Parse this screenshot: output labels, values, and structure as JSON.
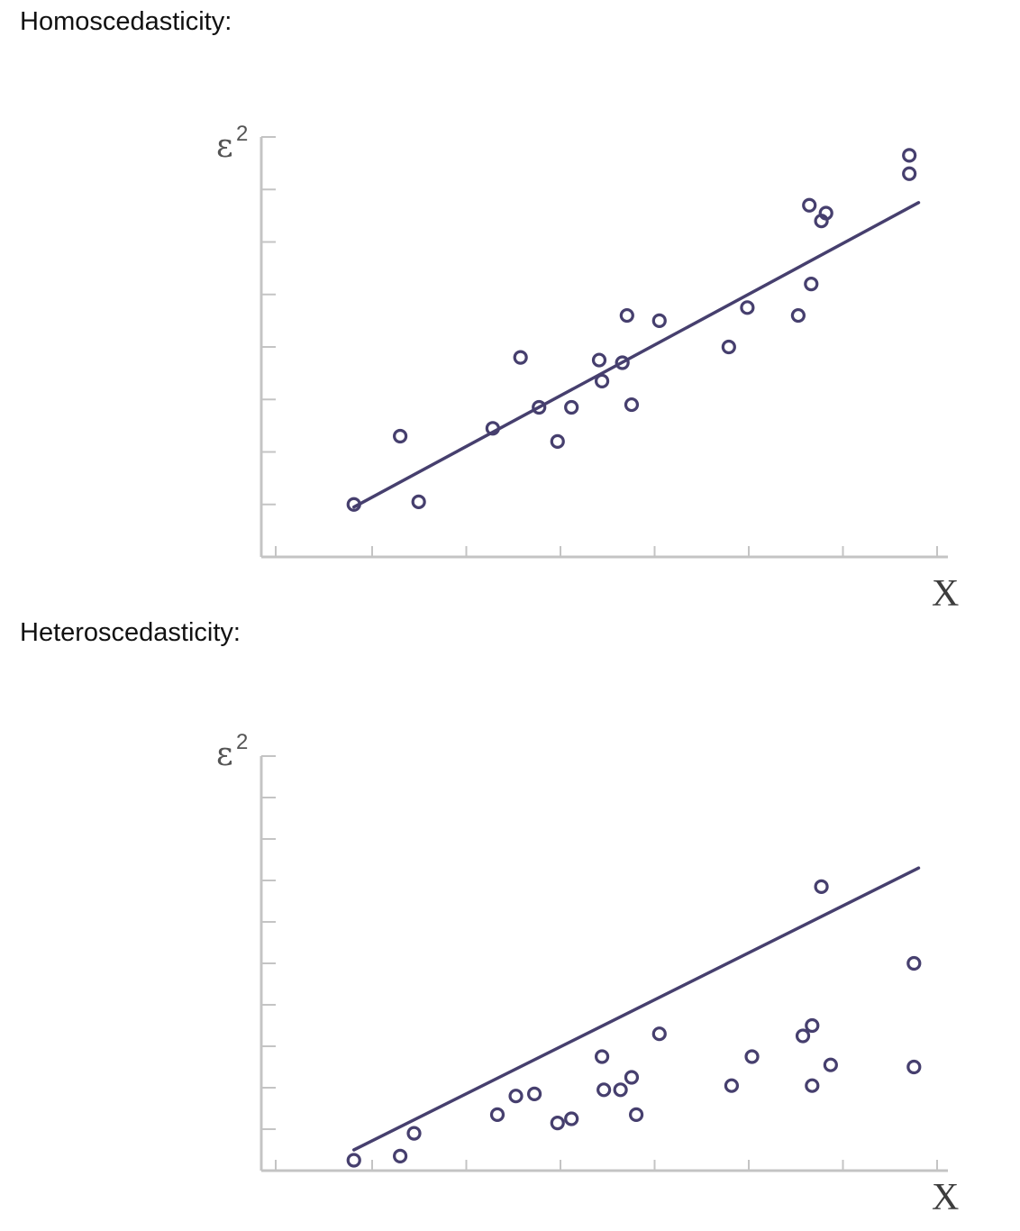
{
  "headings": {
    "homo": "Homoscedasticity:",
    "hetero": "Heteroscedasticity:"
  },
  "colors": {
    "axis": "#c4c4c4",
    "line": "#463f6e",
    "point": "#463f6e",
    "label": "#555555"
  },
  "chart_data": [
    {
      "type": "scatter",
      "title": "Homoscedasticity:",
      "ylabel": "ε",
      "ylabel_sup": "2",
      "xlabel": "X",
      "xlim": [
        0,
        7.3
      ],
      "ylim": [
        0,
        8
      ],
      "x_ticks": 7,
      "y_ticks": 8,
      "grid": false,
      "trend_line": {
        "x": [
          1.0,
          7.1
        ],
        "y": [
          0.95,
          6.75
        ]
      },
      "points": {
        "x": [
          1.0,
          1.5,
          1.7,
          2.5,
          2.8,
          3.0,
          3.2,
          3.35,
          3.65,
          3.68,
          3.9,
          3.95,
          4.0,
          4.3,
          5.05,
          5.25,
          5.8,
          5.92,
          5.94,
          6.05,
          6.1,
          7.0,
          7.0
        ],
        "y": [
          1.0,
          2.3,
          1.05,
          2.45,
          3.8,
          2.85,
          2.2,
          2.85,
          3.75,
          3.35,
          3.7,
          4.6,
          2.9,
          4.5,
          4.0,
          4.75,
          4.6,
          6.7,
          5.2,
          6.4,
          6.55,
          7.3,
          7.65
        ]
      }
    },
    {
      "type": "scatter",
      "title": "Heteroscedasticity:",
      "ylabel": "ε",
      "ylabel_sup": "2",
      "xlabel": "X",
      "xlim": [
        0,
        7.3
      ],
      "ylim": [
        0,
        10
      ],
      "x_ticks": 7,
      "y_ticks": 10,
      "grid": false,
      "trend_line": {
        "x": [
          1.0,
          7.1
        ],
        "y": [
          0.5,
          7.3
        ]
      },
      "points": {
        "x": [
          1.0,
          1.5,
          1.65,
          2.55,
          2.75,
          2.95,
          3.2,
          3.35,
          3.68,
          3.7,
          3.88,
          4.0,
          4.05,
          4.3,
          5.08,
          5.3,
          5.85,
          5.95,
          5.95,
          6.05,
          6.15,
          7.05,
          7.05
        ],
        "y": [
          0.25,
          0.35,
          0.9,
          1.35,
          1.8,
          1.85,
          1.15,
          1.25,
          2.75,
          1.95,
          1.95,
          2.25,
          1.35,
          3.3,
          2.05,
          2.75,
          3.25,
          3.5,
          2.05,
          6.85,
          2.55,
          5.0,
          2.5
        ]
      }
    }
  ]
}
